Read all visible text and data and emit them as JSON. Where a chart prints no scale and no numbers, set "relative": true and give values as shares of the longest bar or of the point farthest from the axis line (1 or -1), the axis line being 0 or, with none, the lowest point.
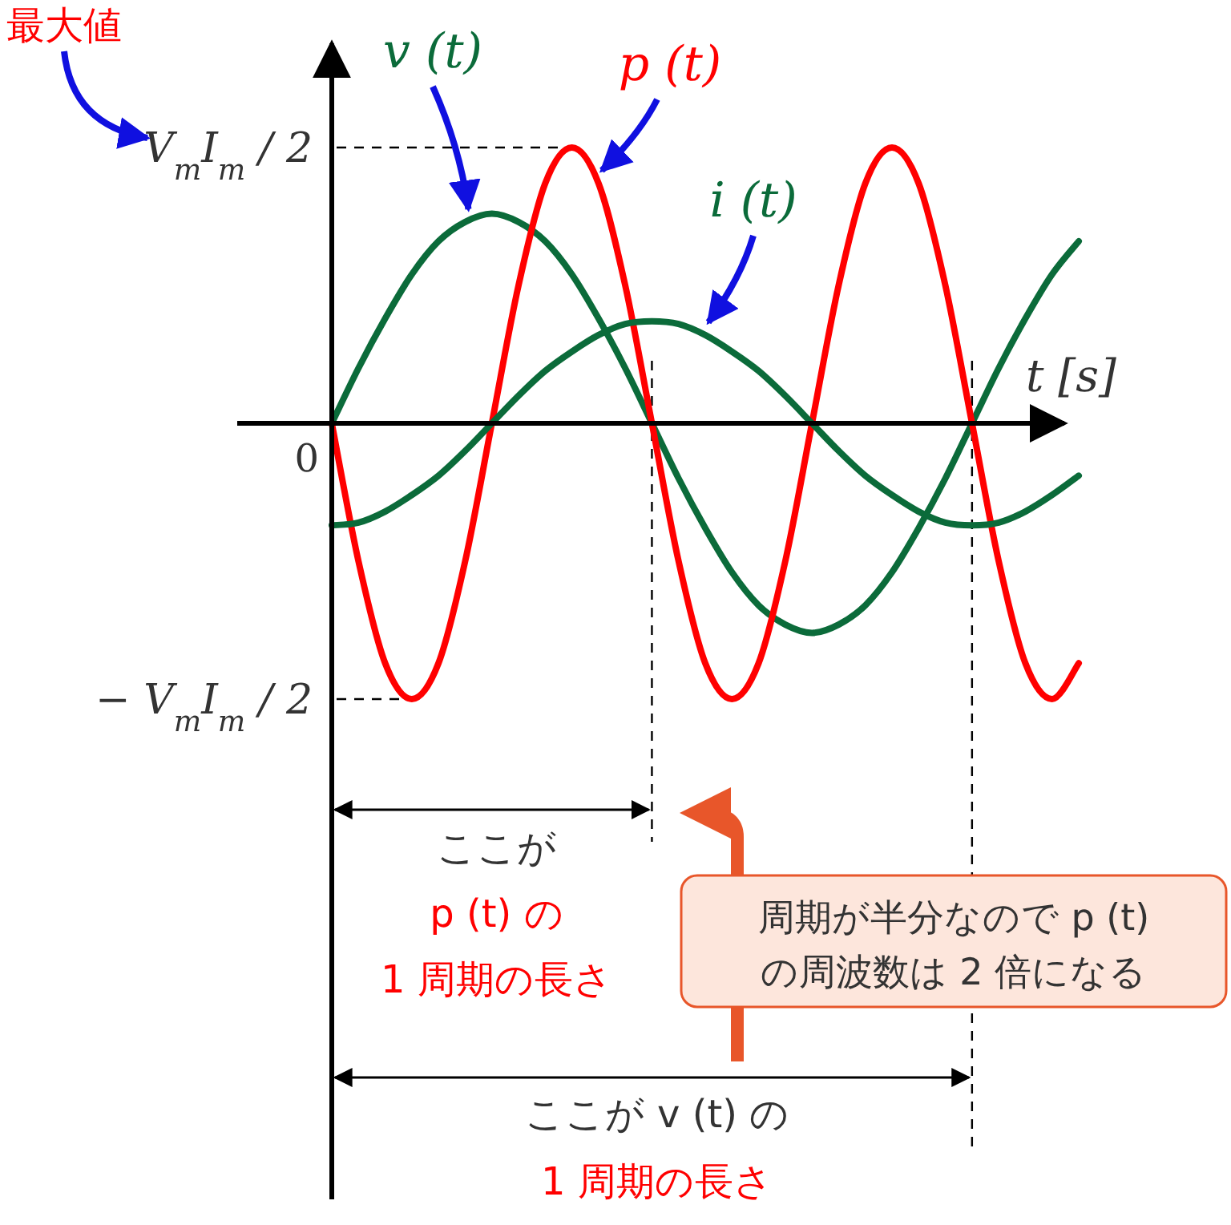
{
  "chart_data": {
    "type": "line",
    "relative": true,
    "xlabel": "t [s]",
    "marker": "none",
    "line_style": "solid",
    "categories": [
      null,
      null,
      null,
      null,
      null,
      null,
      null,
      null,
      null,
      null,
      null,
      null,
      null,
      null,
      null,
      null,
      null,
      null,
      null,
      null,
      null,
      null,
      null,
      null,
      null,
      null,
      null,
      null,
      null
    ],
    "series": [
      {
        "name": "v (t)",
        "color": "#0b6b3a",
        "values": [
          0,
          0.2,
          0.38,
          0.54,
          0.66,
          0.73,
          0.76,
          0.73,
          0.66,
          0.54,
          0.38,
          0.2,
          0,
          -0.2,
          -0.38,
          -0.54,
          -0.66,
          -0.73,
          -0.76,
          -0.73,
          -0.66,
          -0.54,
          -0.38,
          -0.2,
          0,
          0.2,
          0.38,
          0.54,
          0.66
        ]
      },
      {
        "name": "p (t)",
        "color": "#ff0000",
        "values": [
          0,
          -0.5,
          -0.87,
          -1,
          -0.87,
          -0.5,
          0,
          0.5,
          0.87,
          1,
          0.87,
          0.5,
          0,
          -0.5,
          -0.87,
          -1,
          -0.87,
          -0.5,
          0,
          0.5,
          0.87,
          1,
          0.87,
          0.5,
          0,
          -0.5,
          -0.87,
          -1,
          -0.87
        ]
      },
      {
        "name": "i (t)",
        "color": "#0b6b3a",
        "values": [
          -0.37,
          -0.36,
          -0.32,
          -0.26,
          -0.19,
          -0.1,
          0,
          0.1,
          0.19,
          0.26,
          0.32,
          0.36,
          0.37,
          0.36,
          0.32,
          0.26,
          0.19,
          0.1,
          0,
          -0.1,
          -0.19,
          -0.26,
          -0.32,
          -0.36,
          -0.37,
          -0.36,
          -0.32,
          -0.26,
          -0.19
        ]
      }
    ],
    "ref_lines": [
      {
        "axis": "y",
        "value": 1,
        "label": "V$_{m}$I$_{m}$ / 2",
        "line_style": "dashed"
      },
      {
        "axis": "y",
        "value": -1,
        "label": "− V$_{m}$I$_{m}$ / 2",
        "line_style": "dashed"
      }
    ],
    "annotations": [
      "最大値",
      "ここが\np (t) の\n1 周期の長さ",
      "周期が半分なので p (t)\nの周波数は 2 倍になる",
      "ここが v (t) の\n1 周期の長さ",
      "0"
    ]
  }
}
